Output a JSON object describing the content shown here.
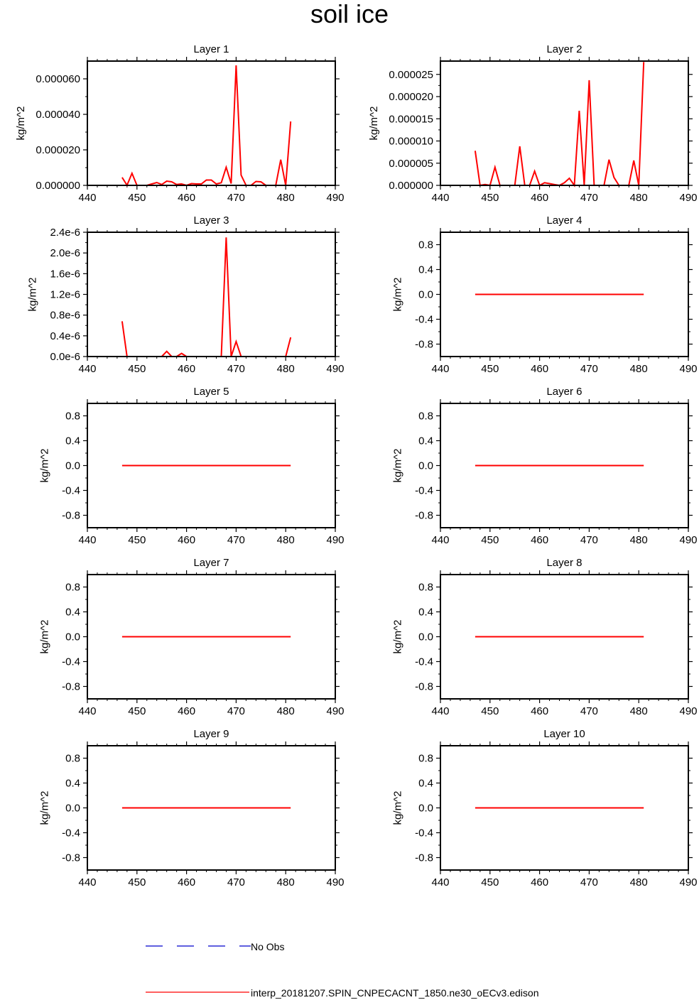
{
  "title": "soil ice",
  "colors": {
    "model": "#ff0000",
    "obs": "#0000cc",
    "frame": "#000000"
  },
  "legend": [
    {
      "label": "No Obs",
      "style": "dashed",
      "color": "#0000cc"
    },
    {
      "label": "interp_20181207.SPIN_CNPECACNT_1850.ne30_oECv3.edison",
      "style": "solid",
      "color": "#ff0000"
    }
  ],
  "chart_data": [
    {
      "type": "line",
      "title": "Layer 1",
      "xlabel": "",
      "ylabel": "kg/m^2",
      "xlim": [
        440,
        490
      ],
      "ylim": [
        0,
        7e-05
      ],
      "xticks": [
        440,
        450,
        460,
        470,
        480,
        490
      ],
      "xtick_labels": [
        "440",
        "450",
        "460",
        "470",
        "480",
        "490"
      ],
      "yticks": [
        0,
        2e-05,
        4e-05,
        6e-05
      ],
      "ytick_labels": [
        "0.000000",
        "0.000020",
        "0.000040",
        "0.000060"
      ],
      "series": [
        {
          "name": "interp_20181207.SPIN_CNPECACNT_1850.ne30_oECv3.edison",
          "x": [
            447,
            448,
            449,
            450,
            451,
            452,
            453,
            454,
            455,
            456,
            457,
            458,
            459,
            460,
            461,
            462,
            463,
            464,
            465,
            466,
            467,
            468,
            469,
            470,
            471,
            472,
            473,
            474,
            475,
            476,
            477,
            478,
            479,
            480,
            481
          ],
          "y": [
            4.5e-06,
            1e-07,
            6.8e-06,
            0,
            0,
            0,
            8e-07,
            1.6e-06,
            5e-07,
            2.4e-06,
            2e-06,
            5e-07,
            8e-07,
            0,
            1e-06,
            8e-07,
            8e-07,
            3e-06,
            3e-06,
            8e-07,
            1.5e-06,
            1.02e-05,
            1e-06,
            6.76e-05,
            5.8e-06,
            0,
            0,
            2.2e-06,
            2e-06,
            0,
            0,
            0,
            1.45e-05,
            0,
            3.6e-05
          ]
        }
      ]
    },
    {
      "type": "line",
      "title": "Layer 2",
      "xlabel": "",
      "ylabel": "kg/m^2",
      "xlim": [
        440,
        490
      ],
      "ylim": [
        0,
        2.8e-05
      ],
      "xticks": [
        440,
        450,
        460,
        470,
        480,
        490
      ],
      "xtick_labels": [
        "440",
        "450",
        "460",
        "470",
        "480",
        "490"
      ],
      "yticks": [
        0,
        5e-06,
        1e-05,
        1.5e-05,
        2e-05,
        2.5e-05
      ],
      "ytick_labels": [
        "0.000000",
        "0.000005",
        "0.000010",
        "0.000015",
        "0.000020",
        "0.000025"
      ],
      "series": [
        {
          "name": "interp_20181207.SPIN_CNPECACNT_1850.ne30_oECv3.edison",
          "x": [
            447,
            448,
            449,
            450,
            451,
            452,
            453,
            454,
            455,
            456,
            457,
            458,
            459,
            460,
            461,
            462,
            463,
            464,
            465,
            466,
            467,
            468,
            469,
            470,
            471,
            472,
            473,
            474,
            475,
            476,
            477,
            478,
            479,
            480,
            481
          ],
          "y": [
            7.8e-06,
            0,
            2e-07,
            0,
            4.1e-06,
            0,
            0,
            0,
            0,
            8.8e-06,
            0,
            0,
            3.2e-06,
            0,
            6e-07,
            4e-07,
            2e-07,
            0,
            6e-07,
            1.6e-06,
            0,
            1.68e-05,
            0,
            2.37e-05,
            0,
            0,
            0,
            5.8e-06,
            1.8e-06,
            0,
            0,
            0,
            5.6e-06,
            0,
            2.78e-05
          ]
        }
      ]
    },
    {
      "type": "line",
      "title": "Layer 3",
      "xlabel": "",
      "ylabel": "kg/m^2",
      "xlim": [
        440,
        490
      ],
      "ylim": [
        0,
        2.4e-06
      ],
      "xticks": [
        440,
        450,
        460,
        470,
        480,
        490
      ],
      "xtick_labels": [
        "440",
        "450",
        "460",
        "470",
        "480",
        "490"
      ],
      "yticks": [
        0,
        4e-07,
        8e-07,
        1.2e-06,
        1.6e-06,
        2e-06,
        2.4e-06
      ],
      "ytick_labels": [
        "0.0e-6",
        "0.4e-6",
        "0.8e-6",
        "1.2e-6",
        "1.6e-6",
        "2.0e-6",
        "2.4e-6"
      ],
      "series": [
        {
          "name": "interp_20181207.SPIN_CNPECACNT_1850.ne30_oECv3.edison",
          "x": [
            447,
            448,
            449,
            450,
            451,
            452,
            453,
            454,
            455,
            456,
            457,
            458,
            459,
            460,
            461,
            462,
            463,
            464,
            465,
            466,
            467,
            468,
            469,
            470,
            471,
            472,
            473,
            474,
            475,
            476,
            477,
            478,
            479,
            480,
            481
          ],
          "y": [
            6.8e-07,
            0,
            0,
            0,
            0,
            0,
            0,
            0,
            0,
            1e-07,
            0,
            0,
            6e-08,
            0,
            0,
            0,
            0,
            0,
            0,
            0,
            0,
            2.3e-06,
            0,
            2.9e-07,
            0,
            0,
            0,
            0,
            0,
            0,
            0,
            0,
            0,
            0,
            3.7e-07
          ]
        }
      ]
    },
    {
      "type": "line",
      "title": "Layer 4",
      "xlabel": "",
      "ylabel": "kg/m^2",
      "xlim": [
        440,
        490
      ],
      "ylim": [
        -1,
        1
      ],
      "xticks": [
        440,
        450,
        460,
        470,
        480,
        490
      ],
      "xtick_labels": [
        "440",
        "450",
        "460",
        "470",
        "480",
        "490"
      ],
      "yticks": [
        -0.8,
        -0.4,
        0,
        0.4,
        0.8
      ],
      "ytick_labels": [
        "-0.8",
        "-0.4",
        "0.0",
        "0.4",
        "0.8"
      ],
      "series": [
        {
          "name": "interp_20181207.SPIN_CNPECACNT_1850.ne30_oECv3.edison",
          "x": [
            447,
            481
          ],
          "y": [
            0,
            0
          ]
        }
      ]
    },
    {
      "type": "line",
      "title": "Layer 5",
      "xlabel": "",
      "ylabel": "kg/m^2",
      "xlim": [
        440,
        490
      ],
      "ylim": [
        -1,
        1
      ],
      "xticks": [
        440,
        450,
        460,
        470,
        480,
        490
      ],
      "xtick_labels": [
        "440",
        "450",
        "460",
        "470",
        "480",
        "490"
      ],
      "yticks": [
        -0.8,
        -0.4,
        0,
        0.4,
        0.8
      ],
      "ytick_labels": [
        "-0.8",
        "-0.4",
        "0.0",
        "0.4",
        "0.8"
      ],
      "series": [
        {
          "name": "interp_20181207.SPIN_CNPECACNT_1850.ne30_oECv3.edison",
          "x": [
            447,
            481
          ],
          "y": [
            0,
            0
          ]
        }
      ]
    },
    {
      "type": "line",
      "title": "Layer 6",
      "xlabel": "",
      "ylabel": "kg/m^2",
      "xlim": [
        440,
        490
      ],
      "ylim": [
        -1,
        1
      ],
      "xticks": [
        440,
        450,
        460,
        470,
        480,
        490
      ],
      "xtick_labels": [
        "440",
        "450",
        "460",
        "470",
        "480",
        "490"
      ],
      "yticks": [
        -0.8,
        -0.4,
        0,
        0.4,
        0.8
      ],
      "ytick_labels": [
        "-0.8",
        "-0.4",
        "0.0",
        "0.4",
        "0.8"
      ],
      "series": [
        {
          "name": "interp_20181207.SPIN_CNPECACNT_1850.ne30_oECv3.edison",
          "x": [
            447,
            481
          ],
          "y": [
            0,
            0
          ]
        }
      ]
    },
    {
      "type": "line",
      "title": "Layer 7",
      "xlabel": "",
      "ylabel": "kg/m^2",
      "xlim": [
        440,
        490
      ],
      "ylim": [
        -1,
        1
      ],
      "xticks": [
        440,
        450,
        460,
        470,
        480,
        490
      ],
      "xtick_labels": [
        "440",
        "450",
        "460",
        "470",
        "480",
        "490"
      ],
      "yticks": [
        -0.8,
        -0.4,
        0,
        0.4,
        0.8
      ],
      "ytick_labels": [
        "-0.8",
        "-0.4",
        "0.0",
        "0.4",
        "0.8"
      ],
      "series": [
        {
          "name": "interp_20181207.SPIN_CNPECACNT_1850.ne30_oECv3.edison",
          "x": [
            447,
            481
          ],
          "y": [
            0,
            0
          ]
        }
      ]
    },
    {
      "type": "line",
      "title": "Layer 8",
      "xlabel": "",
      "ylabel": "kg/m^2",
      "xlim": [
        440,
        490
      ],
      "ylim": [
        -1,
        1
      ],
      "xticks": [
        440,
        450,
        460,
        470,
        480,
        490
      ],
      "xtick_labels": [
        "440",
        "450",
        "460",
        "470",
        "480",
        "490"
      ],
      "yticks": [
        -0.8,
        -0.4,
        0,
        0.4,
        0.8
      ],
      "ytick_labels": [
        "-0.8",
        "-0.4",
        "0.0",
        "0.4",
        "0.8"
      ],
      "series": [
        {
          "name": "interp_20181207.SPIN_CNPECACNT_1850.ne30_oECv3.edison",
          "x": [
            447,
            481
          ],
          "y": [
            0,
            0
          ]
        }
      ]
    },
    {
      "type": "line",
      "title": "Layer 9",
      "xlabel": "",
      "ylabel": "kg/m^2",
      "xlim": [
        440,
        490
      ],
      "ylim": [
        -1,
        1
      ],
      "xticks": [
        440,
        450,
        460,
        470,
        480,
        490
      ],
      "xtick_labels": [
        "440",
        "450",
        "460",
        "470",
        "480",
        "490"
      ],
      "yticks": [
        -0.8,
        -0.4,
        0,
        0.4,
        0.8
      ],
      "ytick_labels": [
        "-0.8",
        "-0.4",
        "0.0",
        "0.4",
        "0.8"
      ],
      "series": [
        {
          "name": "interp_20181207.SPIN_CNPECACNT_1850.ne30_oECv3.edison",
          "x": [
            447,
            481
          ],
          "y": [
            0,
            0
          ]
        }
      ]
    },
    {
      "type": "line",
      "title": "Layer 10",
      "xlabel": "",
      "ylabel": "kg/m^2",
      "xlim": [
        440,
        490
      ],
      "ylim": [
        -1,
        1
      ],
      "xticks": [
        440,
        450,
        460,
        470,
        480,
        490
      ],
      "xtick_labels": [
        "440",
        "450",
        "460",
        "470",
        "480",
        "490"
      ],
      "yticks": [
        -0.8,
        -0.4,
        0,
        0.4,
        0.8
      ],
      "ytick_labels": [
        "-0.8",
        "-0.4",
        "0.0",
        "0.4",
        "0.8"
      ],
      "series": [
        {
          "name": "interp_20181207.SPIN_CNPECACNT_1850.ne30_oECv3.edison",
          "x": [
            447,
            481
          ],
          "y": [
            0,
            0
          ]
        }
      ]
    }
  ]
}
